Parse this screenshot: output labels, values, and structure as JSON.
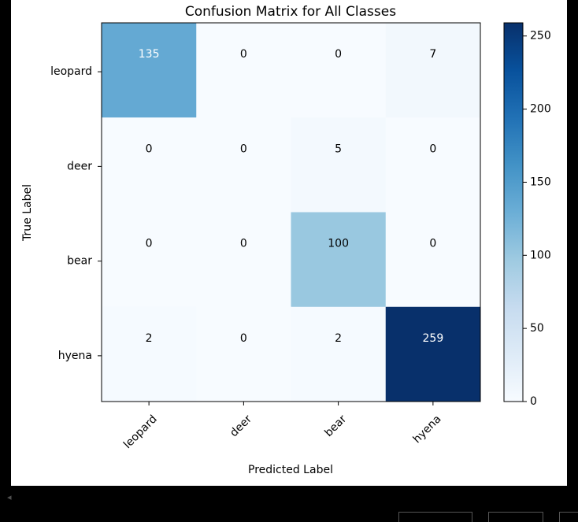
{
  "chart_data": {
    "type": "heatmap",
    "title": "Confusion Matrix for All Classes",
    "xlabel": "Predicted Label",
    "ylabel": "True Label",
    "x_categories": [
      "leopard",
      "deer",
      "bear",
      "hyena"
    ],
    "y_categories": [
      "leopard",
      "deer",
      "bear",
      "hyena"
    ],
    "values": [
      [
        135,
        0,
        0,
        7
      ],
      [
        0,
        0,
        5,
        0
      ],
      [
        0,
        0,
        100,
        0
      ],
      [
        2,
        0,
        2,
        259
      ]
    ],
    "colormap": "Blues",
    "color_range": [
      0,
      259
    ],
    "colorbar_ticks": [
      0,
      50,
      100,
      150,
      200,
      250
    ],
    "text_color_dark": "#000000",
    "text_color_light": "#ffffff"
  },
  "ui": {
    "scroll_arrow": "◂",
    "background_color": "#000000",
    "panel_color": "#ffffff"
  }
}
